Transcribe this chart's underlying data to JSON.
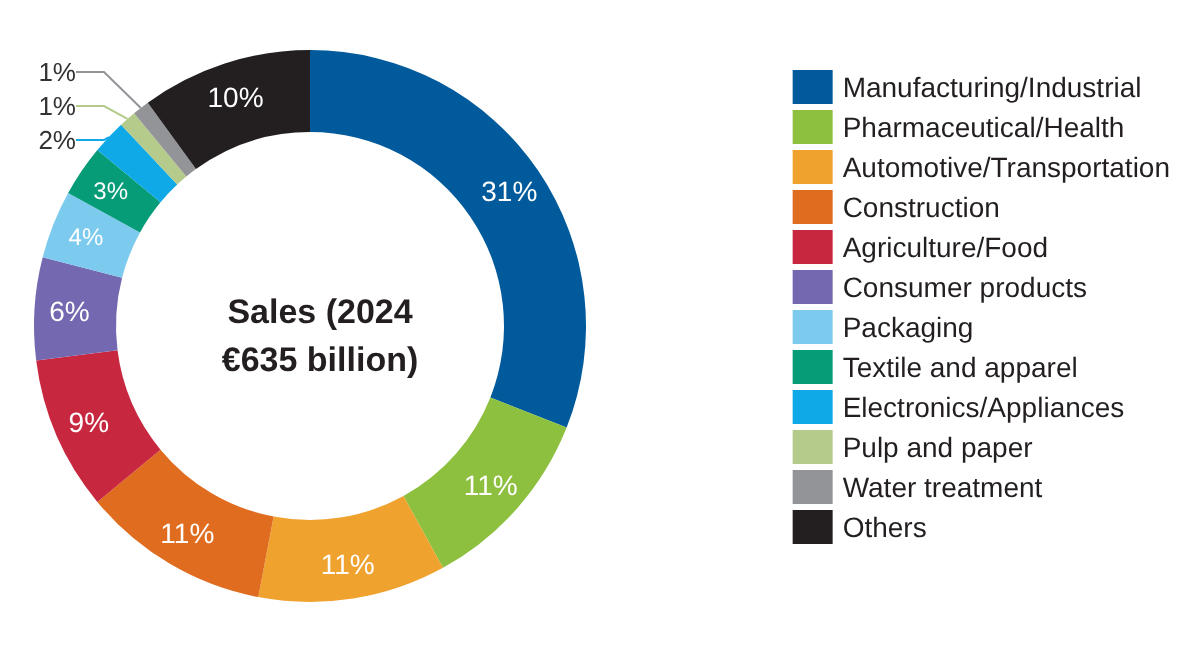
{
  "chart_data": {
    "type": "donut",
    "title": "Sales (2024\n€635 billion)",
    "categories": [
      "Manufacturing/Industrial",
      "Pharmaceutical/Health",
      "Automotive/Transportation",
      "Construction",
      "Agriculture/Food",
      "Consumer products",
      "Packaging",
      "Textile and apparel",
      "Electronics/Appliances",
      "Pulp and paper",
      "Water treatment",
      "Others"
    ],
    "values": [
      31,
      11,
      11,
      11,
      9,
      6,
      4,
      3,
      2,
      1,
      1,
      10
    ],
    "colors": [
      "#005a9c",
      "#8dc03f",
      "#f0a22e",
      "#e06c20",
      "#c8283f",
      "#7468b0",
      "#7ccbee",
      "#079c78",
      "#0ea9e6",
      "#b5cb8c",
      "#929497",
      "#231f20"
    ],
    "value_labels": [
      "31%",
      "11%",
      "11%",
      "11%",
      "9%",
      "6%",
      "4%",
      "3%",
      "2%",
      "1%",
      "1%",
      "10%"
    ],
    "legend": "right"
  }
}
